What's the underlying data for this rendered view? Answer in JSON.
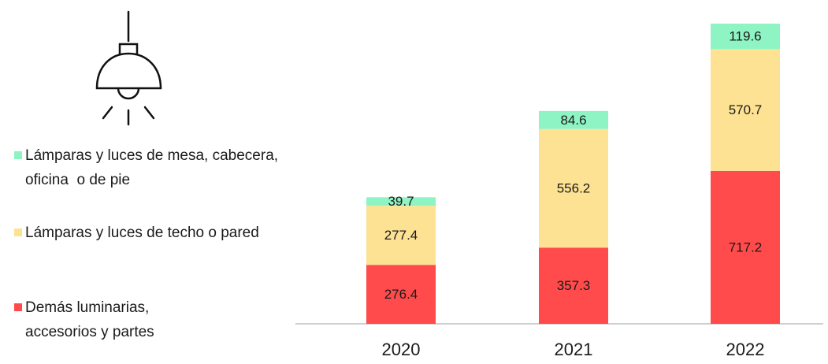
{
  "chart_data": {
    "type": "bar",
    "stacked": true,
    "categories": [
      "2020",
      "2021",
      "2022"
    ],
    "series": [
      {
        "name": "Demás luminarias, accesorios y partes",
        "color": "#ff4b4b",
        "values": [
          276.4,
          357.3,
          717.2
        ]
      },
      {
        "name": "Lámparas y luces de techo o pared",
        "color": "#fde293",
        "values": [
          277.4,
          556.2,
          570.7
        ]
      },
      {
        "name": "Lámparas y luces de mesa, cabecera, oficina  o de pie",
        "color": "#8ef4c4",
        "values": [
          39.7,
          84.6,
          119.6
        ]
      }
    ]
  }
}
